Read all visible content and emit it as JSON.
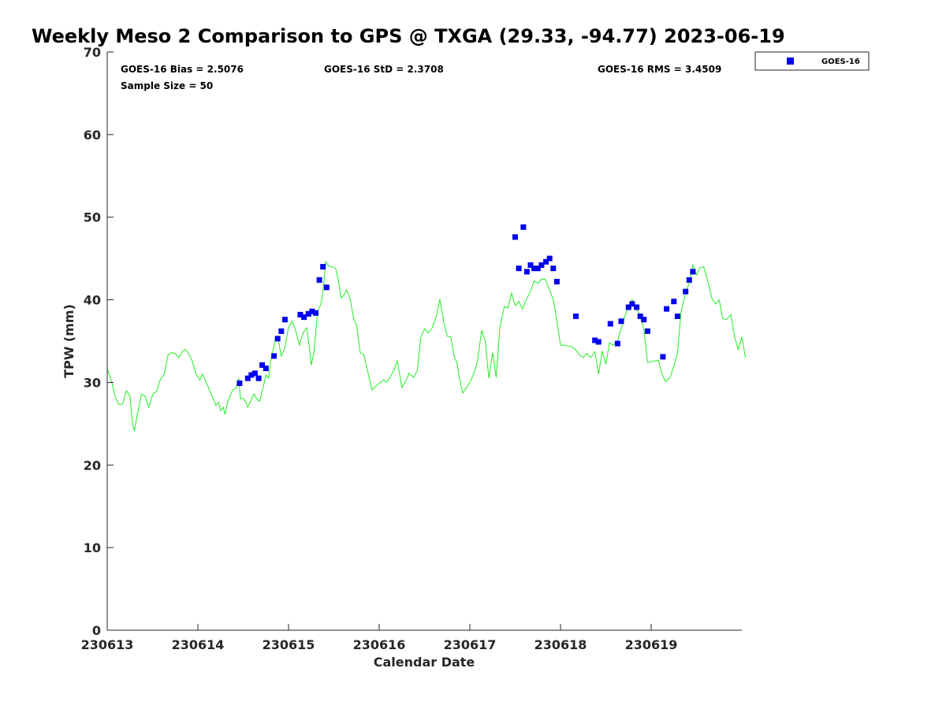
{
  "chart_data": {
    "type": "scatter",
    "title": "Weekly Meso 2 Comparison to GPS @ TXGA (29.33, -94.77) 2023-06-19",
    "xlabel": "Calendar Date",
    "ylabel": "TPW (mm)",
    "xlim": [
      0,
      7
    ],
    "ylim": [
      0,
      70
    ],
    "x_tick_values": [
      0,
      1,
      2,
      3,
      4,
      5,
      6
    ],
    "x_tick_labels": [
      "230613",
      "230614",
      "230615",
      "230616",
      "230617",
      "230618",
      "230619"
    ],
    "y_tick_values": [
      0,
      10,
      20,
      30,
      40,
      50,
      60,
      70
    ],
    "y_tick_labels": [
      "0",
      "10",
      "20",
      "30",
      "40",
      "50",
      "60",
      "70"
    ],
    "x_units": "days since 230613 00Z",
    "grid": false,
    "legend_position": "outside-top-right",
    "stats": {
      "bias": "GOES-16 Bias = 2.5076",
      "std": "GOES-16 StD = 2.3708",
      "rms": "GOES-16 RMS = 3.4509",
      "sample": "Sample Size = 50"
    },
    "series": [
      {
        "name": "GOES-16",
        "kind": "scatter",
        "marker": "square",
        "color": "#0000ee",
        "points": [
          [
            1.46,
            29.9
          ],
          [
            1.55,
            30.5
          ],
          [
            1.59,
            30.9
          ],
          [
            1.63,
            31.1
          ],
          [
            1.67,
            30.5
          ],
          [
            1.71,
            32.1
          ],
          [
            1.75,
            31.7
          ],
          [
            1.84,
            33.2
          ],
          [
            1.88,
            35.3
          ],
          [
            1.92,
            36.2
          ],
          [
            1.96,
            37.6
          ],
          [
            2.13,
            38.2
          ],
          [
            2.17,
            37.9
          ],
          [
            2.22,
            38.3
          ],
          [
            2.26,
            38.6
          ],
          [
            2.3,
            38.4
          ],
          [
            2.34,
            42.4
          ],
          [
            2.38,
            44.0
          ],
          [
            2.42,
            41.5
          ],
          [
            4.5,
            47.6
          ],
          [
            4.54,
            43.8
          ],
          [
            4.59,
            48.8
          ],
          [
            4.63,
            43.4
          ],
          [
            4.67,
            44.2
          ],
          [
            4.71,
            43.8
          ],
          [
            4.75,
            43.8
          ],
          [
            4.79,
            44.2
          ],
          [
            4.84,
            44.6
          ],
          [
            4.88,
            45.0
          ],
          [
            4.92,
            43.8
          ],
          [
            4.96,
            42.2
          ],
          [
            5.17,
            38.0
          ],
          [
            5.38,
            35.1
          ],
          [
            5.42,
            34.9
          ],
          [
            5.55,
            37.1
          ],
          [
            5.63,
            34.7
          ],
          [
            5.67,
            37.4
          ],
          [
            5.75,
            39.1
          ],
          [
            5.79,
            39.5
          ],
          [
            5.84,
            39.1
          ],
          [
            5.88,
            38.0
          ],
          [
            5.92,
            37.6
          ],
          [
            5.96,
            36.2
          ],
          [
            6.13,
            33.1
          ],
          [
            6.17,
            38.9
          ],
          [
            6.25,
            39.8
          ],
          [
            6.29,
            38.0
          ],
          [
            6.38,
            41.0
          ],
          [
            6.42,
            42.4
          ],
          [
            6.46,
            43.4
          ]
        ]
      },
      {
        "name": "",
        "kind": "line",
        "color": "#22ee22",
        "points": [
          [
            0.0,
            31.7
          ],
          [
            0.05,
            30.0
          ],
          [
            0.09,
            28.2
          ],
          [
            0.13,
            27.3
          ],
          [
            0.17,
            27.4
          ],
          [
            0.21,
            29.0
          ],
          [
            0.25,
            28.4
          ],
          [
            0.28,
            25.0
          ],
          [
            0.3,
            24.1
          ],
          [
            0.33,
            26.0
          ],
          [
            0.38,
            28.6
          ],
          [
            0.42,
            28.3
          ],
          [
            0.44,
            27.5
          ],
          [
            0.46,
            27.0
          ],
          [
            0.5,
            28.5
          ],
          [
            0.55,
            29.0
          ],
          [
            0.58,
            30.2
          ],
          [
            0.63,
            31.0
          ],
          [
            0.67,
            33.3
          ],
          [
            0.71,
            33.6
          ],
          [
            0.75,
            33.5
          ],
          [
            0.79,
            33.0
          ],
          [
            0.83,
            33.8
          ],
          [
            0.86,
            34.0
          ],
          [
            0.9,
            33.5
          ],
          [
            0.94,
            32.5
          ],
          [
            0.98,
            31.0
          ],
          [
            1.02,
            30.3
          ],
          [
            1.05,
            31.0
          ],
          [
            1.1,
            29.8
          ],
          [
            1.15,
            28.5
          ],
          [
            1.2,
            27.2
          ],
          [
            1.23,
            27.6
          ],
          [
            1.25,
            26.6
          ],
          [
            1.28,
            27.0
          ],
          [
            1.3,
            26.1
          ],
          [
            1.33,
            27.7
          ],
          [
            1.38,
            29.0
          ],
          [
            1.42,
            29.3
          ],
          [
            1.45,
            30.5
          ],
          [
            1.47,
            28.0
          ],
          [
            1.5,
            28.1
          ],
          [
            1.53,
            27.6
          ],
          [
            1.55,
            27.0
          ],
          [
            1.58,
            27.7
          ],
          [
            1.62,
            28.6
          ],
          [
            1.65,
            28.0
          ],
          [
            1.68,
            27.7
          ],
          [
            1.72,
            29.4
          ],
          [
            1.75,
            30.9
          ],
          [
            1.78,
            30.5
          ],
          [
            1.8,
            32.4
          ],
          [
            1.83,
            34.0
          ],
          [
            1.85,
            35.0
          ],
          [
            1.88,
            35.6
          ],
          [
            1.92,
            33.2
          ],
          [
            1.96,
            34.2
          ],
          [
            2.0,
            36.7
          ],
          [
            2.04,
            37.4
          ],
          [
            2.08,
            36.2
          ],
          [
            2.12,
            34.5
          ],
          [
            2.16,
            36.0
          ],
          [
            2.2,
            36.6
          ],
          [
            2.23,
            34.3
          ],
          [
            2.25,
            32.1
          ],
          [
            2.28,
            33.6
          ],
          [
            2.32,
            38.5
          ],
          [
            2.36,
            39.6
          ],
          [
            2.38,
            41.0
          ],
          [
            2.41,
            44.6
          ],
          [
            2.44,
            44.1
          ],
          [
            2.48,
            44.0
          ],
          [
            2.52,
            43.8
          ],
          [
            2.55,
            42.3
          ],
          [
            2.58,
            40.2
          ],
          [
            2.62,
            40.7
          ],
          [
            2.64,
            41.2
          ],
          [
            2.68,
            40.1
          ],
          [
            2.72,
            37.6
          ],
          [
            2.75,
            37.0
          ],
          [
            2.79,
            33.6
          ],
          [
            2.83,
            33.4
          ],
          [
            2.88,
            31.0
          ],
          [
            2.92,
            29.1
          ],
          [
            2.96,
            29.5
          ],
          [
            3.0,
            29.9
          ],
          [
            3.05,
            30.3
          ],
          [
            3.08,
            30.0
          ],
          [
            3.12,
            30.6
          ],
          [
            3.16,
            31.4
          ],
          [
            3.2,
            32.6
          ],
          [
            3.25,
            29.4
          ],
          [
            3.29,
            30.1
          ],
          [
            3.33,
            31.1
          ],
          [
            3.38,
            30.6
          ],
          [
            3.42,
            31.4
          ],
          [
            3.46,
            35.5
          ],
          [
            3.5,
            36.5
          ],
          [
            3.54,
            36.0
          ],
          [
            3.58,
            36.5
          ],
          [
            3.63,
            38.0
          ],
          [
            3.67,
            40.1
          ],
          [
            3.71,
            37.4
          ],
          [
            3.75,
            35.6
          ],
          [
            3.79,
            35.5
          ],
          [
            3.83,
            33.0
          ],
          [
            3.86,
            32.3
          ],
          [
            3.88,
            30.8
          ],
          [
            3.92,
            28.7
          ],
          [
            3.96,
            29.3
          ],
          [
            4.0,
            30.0
          ],
          [
            4.04,
            31.0
          ],
          [
            4.08,
            32.3
          ],
          [
            4.13,
            36.3
          ],
          [
            4.17,
            35.0
          ],
          [
            4.21,
            30.5
          ],
          [
            4.25,
            33.6
          ],
          [
            4.29,
            30.6
          ],
          [
            4.33,
            36.6
          ],
          [
            4.38,
            39.2
          ],
          [
            4.42,
            39.0
          ],
          [
            4.46,
            40.8
          ],
          [
            4.5,
            39.3
          ],
          [
            4.54,
            39.8
          ],
          [
            4.58,
            38.9
          ],
          [
            4.63,
            40.2
          ],
          [
            4.67,
            41.0
          ],
          [
            4.71,
            42.3
          ],
          [
            4.75,
            42.0
          ],
          [
            4.79,
            42.5
          ],
          [
            4.83,
            42.5
          ],
          [
            4.88,
            41.2
          ],
          [
            4.92,
            40.0
          ],
          [
            4.96,
            37.5
          ],
          [
            5.0,
            34.5
          ],
          [
            5.04,
            34.5
          ],
          [
            5.08,
            34.4
          ],
          [
            5.13,
            34.3
          ],
          [
            5.17,
            33.9
          ],
          [
            5.21,
            33.3
          ],
          [
            5.25,
            33.0
          ],
          [
            5.29,
            33.5
          ],
          [
            5.33,
            33.0
          ],
          [
            5.38,
            33.7
          ],
          [
            5.42,
            31.0
          ],
          [
            5.46,
            33.8
          ],
          [
            5.5,
            32.2
          ],
          [
            5.54,
            34.8
          ],
          [
            5.58,
            34.5
          ],
          [
            5.63,
            35.0
          ],
          [
            5.67,
            36.5
          ],
          [
            5.71,
            38.0
          ],
          [
            5.75,
            39.2
          ],
          [
            5.79,
            40.0
          ],
          [
            5.83,
            39.1
          ],
          [
            5.88,
            38.0
          ],
          [
            5.92,
            36.4
          ],
          [
            5.96,
            32.4
          ],
          [
            6.0,
            32.5
          ],
          [
            6.04,
            32.6
          ],
          [
            6.08,
            32.7
          ],
          [
            6.12,
            31.0
          ],
          [
            6.16,
            30.1
          ],
          [
            6.21,
            30.6
          ],
          [
            6.25,
            32.0
          ],
          [
            6.29,
            33.6
          ],
          [
            6.33,
            38.5
          ],
          [
            6.38,
            40.9
          ],
          [
            6.42,
            42.0
          ],
          [
            6.46,
            44.2
          ],
          [
            6.5,
            43.0
          ],
          [
            6.54,
            43.9
          ],
          [
            6.58,
            44.0
          ],
          [
            6.63,
            42.0
          ],
          [
            6.67,
            40.2
          ],
          [
            6.71,
            39.5
          ],
          [
            6.75,
            40.0
          ],
          [
            6.79,
            37.7
          ],
          [
            6.83,
            37.6
          ],
          [
            6.88,
            38.2
          ],
          [
            6.92,
            35.5
          ],
          [
            6.96,
            34.0
          ],
          [
            7.0,
            35.5
          ],
          [
            7.04,
            33.0
          ]
        ]
      }
    ]
  }
}
